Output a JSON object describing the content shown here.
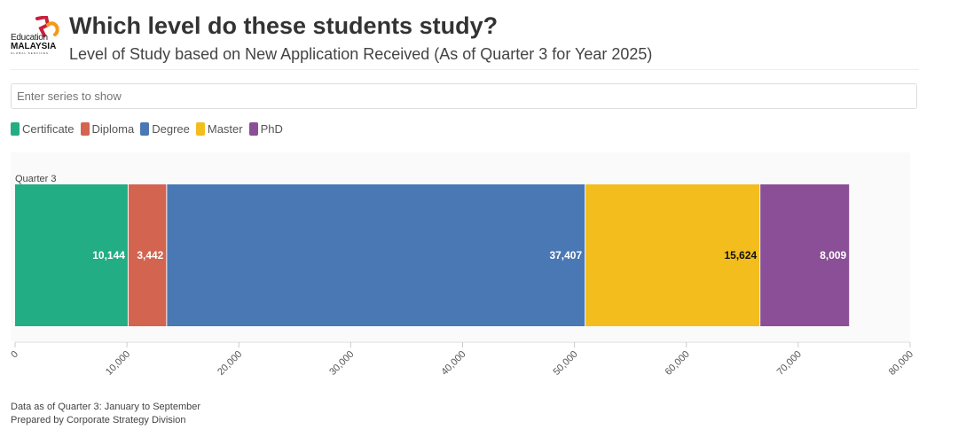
{
  "header": {
    "logo_text": [
      "Education",
      "MALAYSIA",
      "GLOBAL SERVICES"
    ],
    "title": "Which level do these students study?",
    "subtitle": "Level of Study based on New Application Received (As of Quarter 3 for Year 2025)"
  },
  "search": {
    "placeholder": "Enter series to show"
  },
  "chart_data": {
    "type": "bar",
    "orientation": "horizontal",
    "stacked": true,
    "categories": [
      "Quarter 3"
    ],
    "series": [
      {
        "name": "Certificate",
        "values": [
          10144
        ],
        "label": "10,144",
        "color": "#23ad84"
      },
      {
        "name": "Diploma",
        "values": [
          3442
        ],
        "label": "3,442",
        "color": "#d36450"
      },
      {
        "name": "Degree",
        "values": [
          37407
        ],
        "label": "37,407",
        "color": "#4a78b4"
      },
      {
        "name": "Master",
        "values": [
          15624
        ],
        "label": "15,624",
        "color": "#f2bd1d"
      },
      {
        "name": "PhD",
        "values": [
          8009
        ],
        "label": "8,009",
        "color": "#8a4f96"
      }
    ],
    "xlim": [
      0,
      80000
    ],
    "xticks": [
      "0",
      "10,000",
      "20,000",
      "30,000",
      "40,000",
      "50,000",
      "60,000",
      "70,000",
      "80,000"
    ],
    "legend": "top-left",
    "grid": false
  },
  "footer": {
    "line1": "Data as of Quarter 3: January to September",
    "line2": "Prepared by Corporate Strategy Division"
  }
}
